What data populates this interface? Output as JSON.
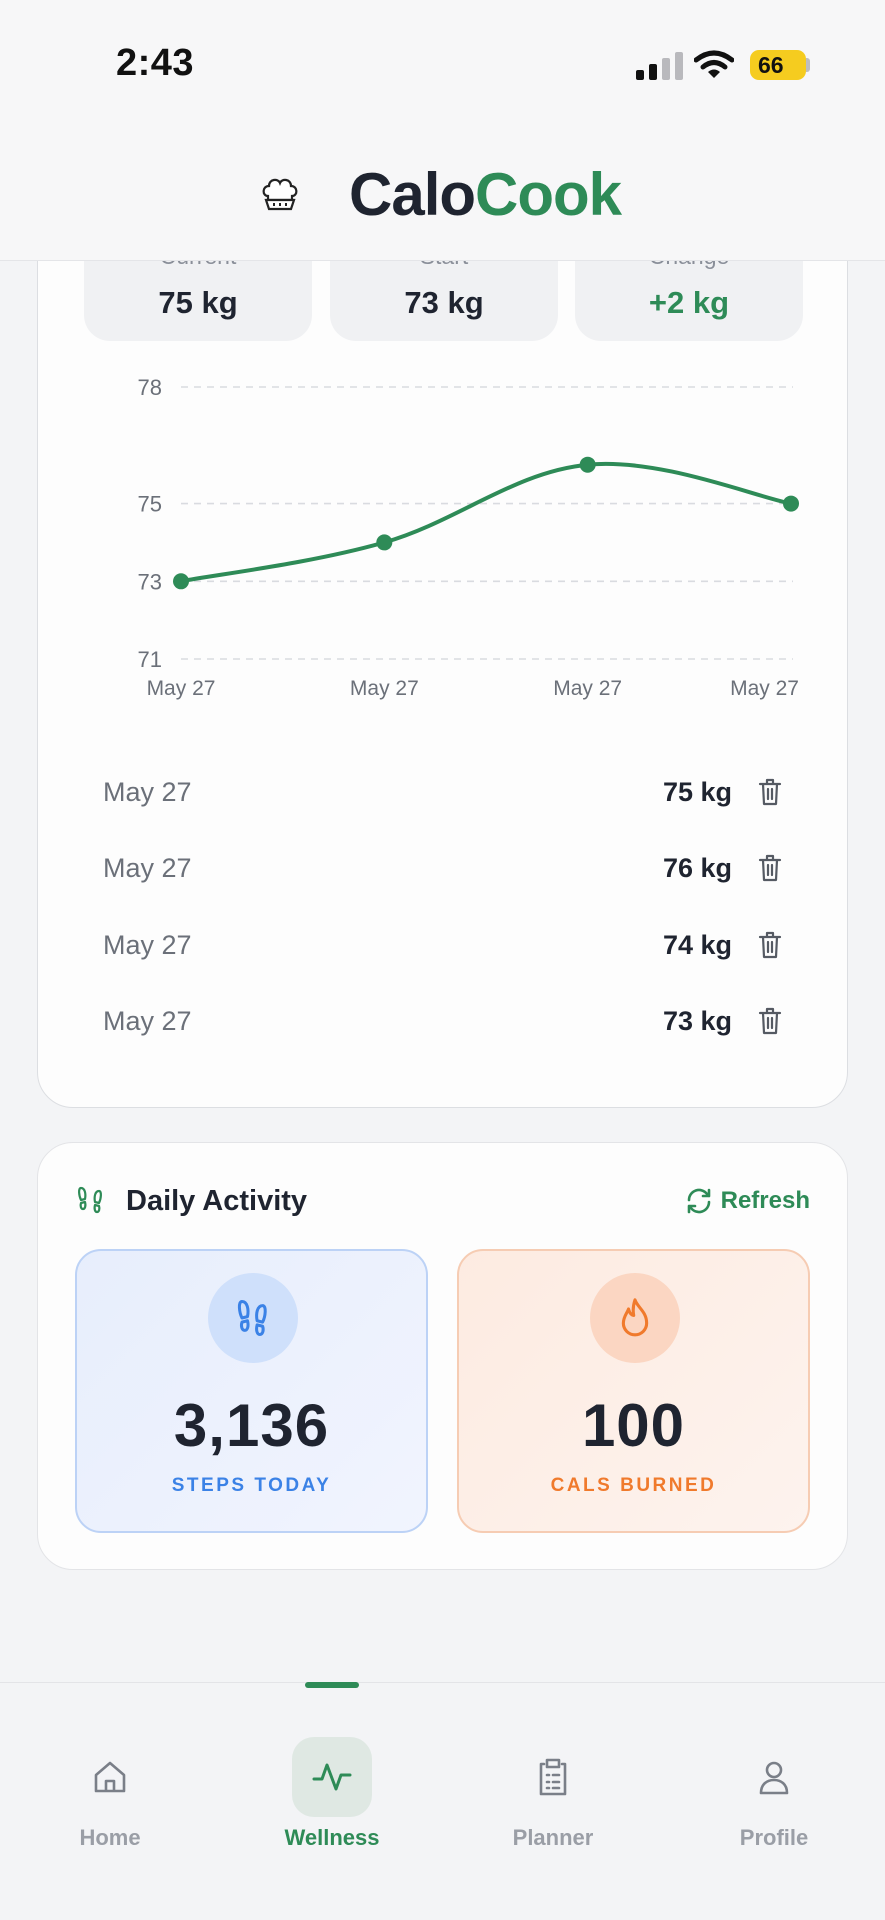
{
  "status_bar": {
    "time": "2:43",
    "battery": "66"
  },
  "header": {
    "brand_part1": "Calo",
    "brand_part2": "Cook"
  },
  "weight_stats": [
    {
      "label": "Current",
      "value": "75 kg"
    },
    {
      "label": "Start",
      "value": "73 kg"
    },
    {
      "label": "Change",
      "value": "+2 kg"
    }
  ],
  "chart_data": {
    "type": "line",
    "y_ticks": [
      "78",
      "75",
      "73",
      "71"
    ],
    "x_labels": [
      "May 27",
      "May 27",
      "May 27",
      "May 27"
    ],
    "series": [
      {
        "values": [
          73,
          74,
          76,
          75
        ]
      }
    ],
    "ylim": [
      71,
      78
    ],
    "grid": true,
    "color": "#2e8b57"
  },
  "entries": [
    {
      "date": "May 27",
      "weight": "75 kg"
    },
    {
      "date": "May 27",
      "weight": "76 kg"
    },
    {
      "date": "May 27",
      "weight": "74 kg"
    },
    {
      "date": "May 27",
      "weight": "73 kg"
    }
  ],
  "activity": {
    "title": "Daily Activity",
    "refresh_label": "Refresh",
    "steps_value": "3,136",
    "steps_label": "STEPS TODAY",
    "cals_value": "100",
    "cals_label": "CALS BURNED"
  },
  "nav": [
    {
      "label": "Home",
      "icon": "home-icon"
    },
    {
      "label": "Wellness",
      "icon": "activity-icon"
    },
    {
      "label": "Planner",
      "icon": "clipboard-icon"
    },
    {
      "label": "Profile",
      "icon": "user-icon"
    }
  ],
  "colors": {
    "accent": "#2e8b57",
    "steps": "#3b82e6",
    "cals": "#f07a2c"
  }
}
